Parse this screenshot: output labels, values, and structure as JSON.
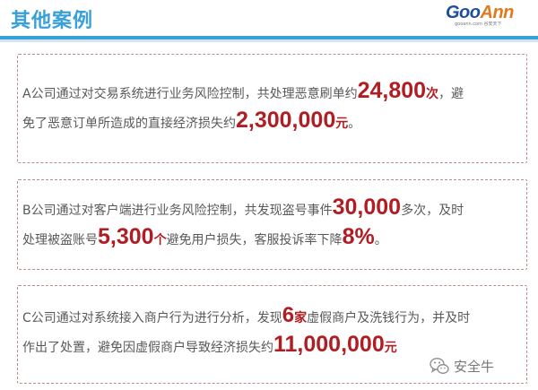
{
  "header": {
    "title": "其他案例",
    "logo": {
      "goo": "Goo",
      "ann": "Ann",
      "sub": "gooann.com 谷安天下"
    },
    "colors": {
      "title": "#3aa0d8",
      "logo_goo": "#1f4e9b",
      "logo_ann": "#e07a20"
    }
  },
  "cases": [
    {
      "line1_pre": "A公司通过对交易系统进行业务风险控制，共处理恶意刷单约",
      "count": "24,800",
      "count_unit": "次",
      "line1_post": "，避",
      "line2_pre": "免了恶意订单所造成的直接经济损失约",
      "loss": "2,300,000",
      "loss_unit": "元",
      "line2_post": "。"
    },
    {
      "line1_pre": "B公司通过对客户端进行业务风险控制，共发现盗号事件",
      "count": "30,000",
      "line1_post": "多次，及时",
      "line2_pre": "处理被盗账号",
      "accounts": "5,300",
      "accounts_unit": "个",
      "line2_mid": "避免用户损失，客服投诉率下降",
      "rate": "8%",
      "line2_post": "。"
    },
    {
      "line1_pre": "C公司通过对系统接入商户行为进行分析，发现",
      "merchants": "6",
      "merchants_unit": "家",
      "line1_post": "虚假商户及洗钱行为，并及时",
      "line2_pre": "作出了处置，避免因虚假商户导致经济损失约",
      "loss": "11,000,000",
      "loss_unit": "元"
    }
  ],
  "watermark": {
    "icon": "wechat-icon",
    "text": "安全牛"
  },
  "colors": {
    "highlight": "#b01e23",
    "box_border": "#c08a8a",
    "body_text": "#595959",
    "accent_line": "#3aa0d8"
  }
}
